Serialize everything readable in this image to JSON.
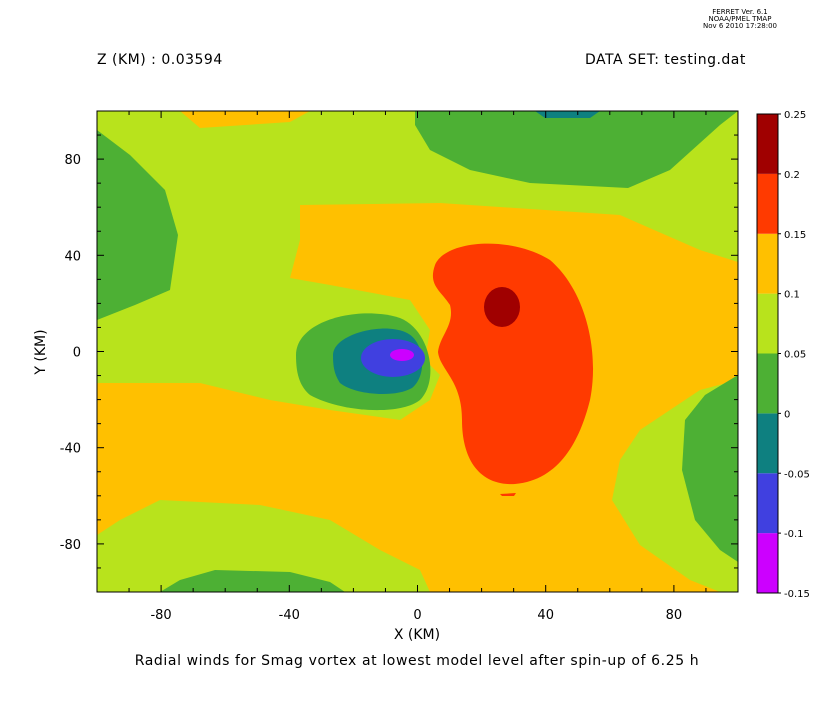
{
  "header": {
    "ferret_version": "FERRET Ver. 6.1",
    "ferret_org": "NOAA/PMEL TMAP",
    "ferret_date": "Nov  6 2010 17:28:00",
    "z_label": "Z (KM) : 0.03594",
    "dataset_label": "DATA SET: testing.dat"
  },
  "chart_data": {
    "type": "heatmap",
    "title": "Radial winds for Smag vortex at lowest model level after spin-up of 6.25 h",
    "xlabel": "X (KM)",
    "ylabel": "Y (KM)",
    "xlim": [
      -100,
      100
    ],
    "ylim": [
      -100,
      100
    ],
    "x_ticks": [
      -80,
      -40,
      0,
      40,
      80
    ],
    "y_ticks": [
      -80,
      -40,
      0,
      40,
      80
    ],
    "colorbar": {
      "levels": [
        -0.15,
        -0.1,
        -0.05,
        0,
        0.05,
        0.1,
        0.15,
        0.2,
        0.25
      ],
      "labels": [
        "-0.15",
        "-0.1",
        "-0.05",
        "0",
        "0.05",
        "0.1",
        "0.15",
        "0.2",
        "0.25"
      ],
      "colors": [
        "#CC00FF",
        "#4040E0",
        "#0E8080",
        "#4DB034",
        "#B8E31C",
        "#FFC000",
        "#FF3A00",
        "#A00000"
      ]
    },
    "features": [
      {
        "name": "max",
        "level": 0.2,
        "x": 27,
        "y": 20
      },
      {
        "name": "min",
        "level": -0.15,
        "x": -5,
        "y": 0
      }
    ]
  }
}
